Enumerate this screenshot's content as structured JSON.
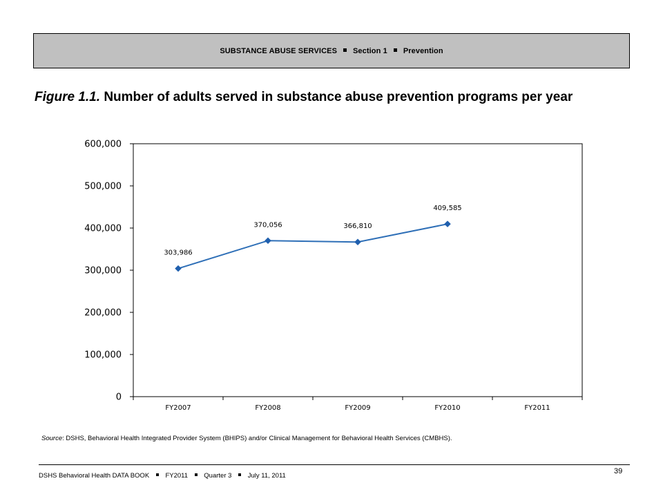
{
  "header": {
    "part1": "SUBSTANCE ABUSE SERVICES",
    "part2": "Section 1",
    "part3": "Prevention"
  },
  "title": {
    "figure_label": "Figure 1.1.",
    "text": "Number of adults served in substance abuse prevention programs per year"
  },
  "chart_data": {
    "type": "line",
    "title": "",
    "xlabel": "",
    "ylabel": "",
    "categories": [
      "FY2007",
      "FY2008",
      "FY2009",
      "FY2010",
      "FY2011"
    ],
    "series": [
      {
        "values": [
          303986,
          370056,
          366810,
          409585,
          null
        ]
      }
    ],
    "data_labels": [
      "303,986",
      "370,056",
      "366,810",
      "409,585",
      ""
    ],
    "y_ticks": [
      0,
      100000,
      200000,
      300000,
      400000,
      500000,
      600000
    ],
    "y_tick_labels": [
      "0",
      "100,000",
      "200,000",
      "300,000",
      "400,000",
      "500,000",
      "600,000"
    ],
    "ylim": [
      0,
      600000
    ],
    "grid": false,
    "legend": "none",
    "line_color": "#2e6fb7",
    "marker_color": "#1f5fae"
  },
  "source": {
    "label": "Source",
    "text": ": DSHS, Behavioral Health Integrated Provider System (BHIPS) and/or Clinical Management for Behavioral Health Services (CMBHS)."
  },
  "footer": {
    "book": "DSHS Behavioral Health DATA BOOK",
    "fy": "FY2011",
    "quarter": "Quarter 3",
    "date": "July 11, 2011",
    "page": "39"
  }
}
